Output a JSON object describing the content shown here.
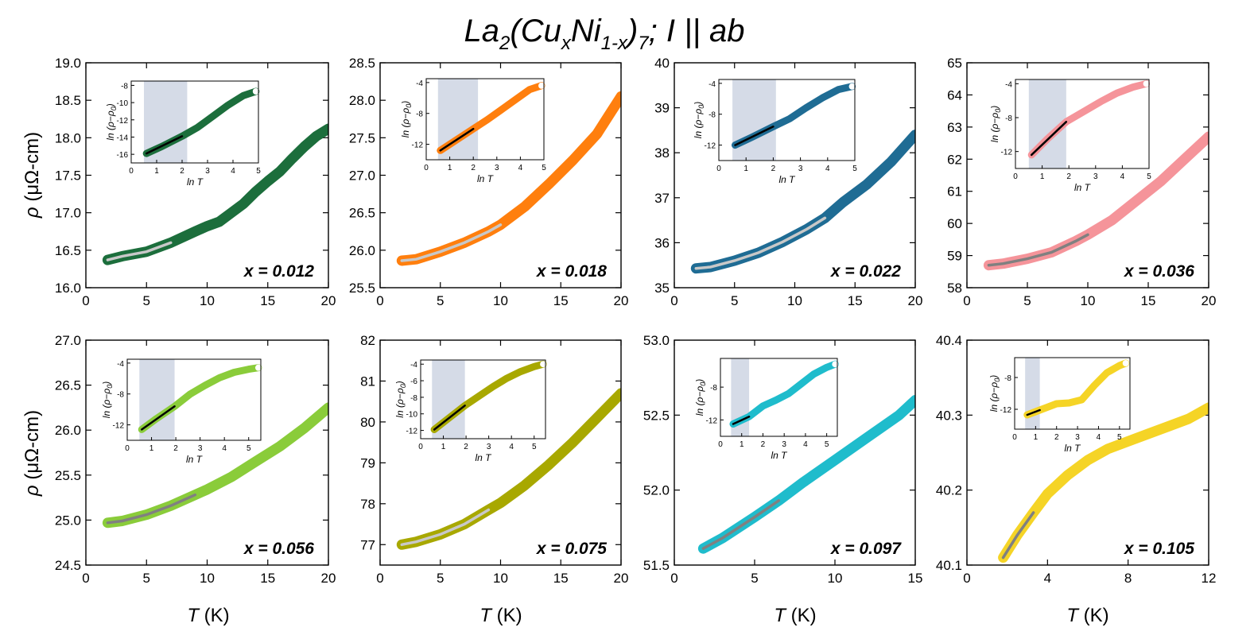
{
  "chart_data": {
    "title": {
      "main": "La",
      "sub1": "2",
      "mid1": "(Cu",
      "sub2": "x",
      "mid2": "Ni",
      "sub3": "1-x",
      "mid3": ")",
      "sub4": "7",
      "end": "; I || ab"
    },
    "ylabel": {
      "symbol": "ρ",
      "unit": " (μΩ-cm)"
    },
    "xlabel": {
      "symbol": "T",
      "unit": " (K)"
    },
    "inset_xlabel": "ln T",
    "inset_ylabel": "ln (ρ−ρ",
    "inset_ylabel_sub": "0",
    "inset_ylabel_end": ")",
    "panels": [
      {
        "label": "x = 0.012",
        "color": "#1c6e3c",
        "fit_color": "#c8c8c8",
        "xlim": [
          0,
          20
        ],
        "xticks": [
          0,
          5,
          10,
          15,
          20
        ],
        "ylim": [
          16.0,
          19.0
        ],
        "yticks": [
          "16.0",
          "16.5",
          "17.0",
          "17.5",
          "18.0",
          "18.5",
          "19.0"
        ],
        "fit_end": 8.2,
        "curve": [
          [
            1.8,
            16.37
          ],
          [
            3,
            16.42
          ],
          [
            5,
            16.48
          ],
          [
            7,
            16.6
          ],
          [
            9,
            16.75
          ],
          [
            10,
            16.82
          ],
          [
            11,
            16.88
          ],
          [
            12,
            17.0
          ],
          [
            13,
            17.12
          ],
          [
            14,
            17.28
          ],
          [
            15,
            17.42
          ],
          [
            16,
            17.55
          ],
          [
            17,
            17.72
          ],
          [
            18,
            17.88
          ],
          [
            19,
            18.02
          ],
          [
            20,
            18.12
          ]
        ],
        "inset": {
          "xlim": [
            0,
            5
          ],
          "xticks": [
            "0",
            "1",
            "2",
            "3",
            "4",
            "5"
          ],
          "ylim": [
            -17,
            -7.5
          ],
          "yticks": [
            "-8",
            "-10",
            "-12",
            "-14",
            "-16"
          ],
          "shade": [
            0.5,
            2.2
          ],
          "fit_end": 2.2,
          "curve": [
            [
              0.6,
              -15.9
            ],
            [
              1.2,
              -15.1
            ],
            [
              2.0,
              -13.9
            ],
            [
              2.6,
              -12.9
            ],
            [
              3.2,
              -11.6
            ],
            [
              3.8,
              -10.3
            ],
            [
              4.4,
              -9.2
            ],
            [
              4.9,
              -8.7
            ]
          ]
        }
      },
      {
        "label": "x = 0.018",
        "color": "#ff7f0e",
        "fit_color": "#c8c8c8",
        "xlim": [
          0,
          20
        ],
        "xticks": [
          0,
          5,
          10,
          15,
          20
        ],
        "ylim": [
          25.5,
          28.5
        ],
        "yticks": [
          "25.5",
          "26.0",
          "26.5",
          "27.0",
          "27.5",
          "28.0",
          "28.5"
        ],
        "fit_end": 10,
        "curve": [
          [
            1.8,
            25.86
          ],
          [
            3,
            25.88
          ],
          [
            5,
            25.98
          ],
          [
            7,
            26.1
          ],
          [
            9,
            26.25
          ],
          [
            10,
            26.34
          ],
          [
            12,
            26.58
          ],
          [
            14,
            26.88
          ],
          [
            16,
            27.2
          ],
          [
            18,
            27.55
          ],
          [
            19,
            27.8
          ],
          [
            20,
            28.05
          ]
        ],
        "inset": {
          "xlim": [
            0,
            5
          ],
          "xticks": [
            "0",
            "1",
            "2",
            "3",
            "4",
            "5"
          ],
          "ylim": [
            -14,
            -3.5
          ],
          "yticks": [
            "-4",
            "-8",
            "-12"
          ],
          "shade": [
            0.5,
            2.2
          ],
          "fit_end": 2.2,
          "curve": [
            [
              0.6,
              -12.8
            ],
            [
              1.2,
              -11.6
            ],
            [
              2.0,
              -10.0
            ],
            [
              2.6,
              -8.8
            ],
            [
              3.2,
              -7.5
            ],
            [
              3.8,
              -6.2
            ],
            [
              4.4,
              -4.9
            ],
            [
              4.9,
              -4.4
            ]
          ]
        }
      },
      {
        "label": "x = 0.022",
        "color": "#1f6c94",
        "fit_color": "#c8c8c8",
        "xlim": [
          0,
          20
        ],
        "xticks": [
          0,
          5,
          10,
          15,
          20
        ],
        "ylim": [
          35,
          40
        ],
        "yticks": [
          "35",
          "36",
          "37",
          "38",
          "39",
          "40"
        ],
        "fit_end": 12.5,
        "curve": [
          [
            1.8,
            35.43
          ],
          [
            3,
            35.46
          ],
          [
            5,
            35.6
          ],
          [
            7,
            35.78
          ],
          [
            9,
            36.02
          ],
          [
            11,
            36.3
          ],
          [
            12.5,
            36.55
          ],
          [
            14,
            36.9
          ],
          [
            16,
            37.3
          ],
          [
            18,
            37.8
          ],
          [
            20,
            38.4
          ]
        ],
        "inset": {
          "xlim": [
            0,
            5
          ],
          "xticks": [
            "0",
            "1",
            "2",
            "3",
            "4",
            "5"
          ],
          "ylim": [
            -14,
            -3.5
          ],
          "yticks": [
            "-4",
            "-8",
            "-12"
          ],
          "shade": [
            0.5,
            2.1
          ],
          "fit_end": 2.1,
          "curve": [
            [
              0.6,
              -12.0
            ],
            [
              1.2,
              -11.0
            ],
            [
              2.0,
              -9.6
            ],
            [
              2.6,
              -8.6
            ],
            [
              3.2,
              -7.2
            ],
            [
              3.8,
              -5.9
            ],
            [
              4.4,
              -4.8
            ],
            [
              4.9,
              -4.4
            ]
          ]
        }
      },
      {
        "label": "x = 0.036",
        "color": "#f5949a",
        "fit_color": "#808080",
        "xlim": [
          0,
          20
        ],
        "xticks": [
          0,
          5,
          10,
          15,
          20
        ],
        "ylim": [
          58,
          65
        ],
        "yticks": [
          "58",
          "59",
          "60",
          "61",
          "62",
          "63",
          "64",
          "65"
        ],
        "fit_end": 10,
        "curve": [
          [
            1.8,
            58.7
          ],
          [
            3,
            58.75
          ],
          [
            5,
            58.9
          ],
          [
            7,
            59.1
          ],
          [
            9,
            59.45
          ],
          [
            10,
            59.65
          ],
          [
            12,
            60.1
          ],
          [
            14,
            60.7
          ],
          [
            16,
            61.3
          ],
          [
            18,
            62.0
          ],
          [
            20,
            62.7
          ]
        ],
        "inset": {
          "xlim": [
            0,
            5
          ],
          "xticks": [
            "0",
            "1",
            "2",
            "3",
            "4",
            "5"
          ],
          "ylim": [
            -14,
            -3.5
          ],
          "yticks": [
            "-4",
            "-8",
            "-12"
          ],
          "shade": [
            0.5,
            1.9
          ],
          "fit_end": 1.9,
          "curve": [
            [
              0.6,
              -12.4
            ],
            [
              1.2,
              -10.5
            ],
            [
              1.9,
              -8.5
            ],
            [
              2.6,
              -7.2
            ],
            [
              3.2,
              -6.1
            ],
            [
              3.8,
              -5.1
            ],
            [
              4.4,
              -4.4
            ],
            [
              4.9,
              -4.0
            ]
          ]
        }
      },
      {
        "label": "x = 0.056",
        "color": "#8acc3a",
        "fit_color": "#808080",
        "xlim": [
          0,
          20
        ],
        "xticks": [
          0,
          5,
          10,
          15,
          20
        ],
        "ylim": [
          24.5,
          27.0
        ],
        "yticks": [
          "24.5",
          "25.0",
          "25.5",
          "26.0",
          "26.5",
          "27.0"
        ],
        "fit_end": 9.8,
        "curve": [
          [
            1.8,
            24.97
          ],
          [
            3,
            24.99
          ],
          [
            5,
            25.06
          ],
          [
            7,
            25.16
          ],
          [
            9,
            25.28
          ],
          [
            10,
            25.34
          ],
          [
            12,
            25.48
          ],
          [
            14,
            25.65
          ],
          [
            16,
            25.82
          ],
          [
            18,
            26.02
          ],
          [
            20,
            26.25
          ]
        ],
        "inset": {
          "xlim": [
            0,
            5.5
          ],
          "xticks": [
            "0",
            "1",
            "2",
            "3",
            "4",
            "5"
          ],
          "ylim": [
            -14,
            -3.5
          ],
          "yticks": [
            "-4",
            "-8",
            "-12"
          ],
          "shade": [
            0.5,
            1.95
          ],
          "fit_end": 1.95,
          "curve": [
            [
              0.6,
              -12.6
            ],
            [
              1.2,
              -11.2
            ],
            [
              1.95,
              -9.6
            ],
            [
              2.6,
              -8.0
            ],
            [
              3.2,
              -6.9
            ],
            [
              3.8,
              -5.9
            ],
            [
              4.4,
              -5.2
            ],
            [
              5.0,
              -4.8
            ],
            [
              5.4,
              -4.6
            ]
          ]
        }
      },
      {
        "label": "x = 0.075",
        "color": "#a8a800",
        "fit_color": "#c8c8c8",
        "xlim": [
          0,
          20
        ],
        "xticks": [
          0,
          5,
          10,
          15,
          20
        ],
        "ylim": [
          76.5,
          82
        ],
        "yticks": [
          "77",
          "78",
          "79",
          "80",
          "81",
          "82"
        ],
        "fit_end": 9.5,
        "curve": [
          [
            1.8,
            77.0
          ],
          [
            3,
            77.07
          ],
          [
            5,
            77.25
          ],
          [
            7,
            77.5
          ],
          [
            9,
            77.85
          ],
          [
            10,
            78.02
          ],
          [
            12,
            78.45
          ],
          [
            14,
            78.95
          ],
          [
            16,
            79.5
          ],
          [
            18,
            80.1
          ],
          [
            20,
            80.7
          ]
        ],
        "inset": {
          "xlim": [
            0,
            5.5
          ],
          "xticks": [
            "0",
            "1",
            "2",
            "3",
            "4",
            "5"
          ],
          "ylim": [
            -13,
            -3.5
          ],
          "yticks": [
            "-4",
            "-6",
            "-8",
            "-10",
            "-12"
          ],
          "shade": [
            0.5,
            1.95
          ],
          "fit_end": 1.95,
          "curve": [
            [
              0.6,
              -11.9
            ],
            [
              1.2,
              -10.6
            ],
            [
              1.95,
              -9.0
            ],
            [
              2.6,
              -7.8
            ],
            [
              3.2,
              -6.7
            ],
            [
              3.8,
              -5.7
            ],
            [
              4.4,
              -4.9
            ],
            [
              5.0,
              -4.3
            ],
            [
              5.4,
              -4.0
            ]
          ]
        }
      },
      {
        "label": "x = 0.097",
        "color": "#1fbccc",
        "fit_color": "#808080",
        "xlim": [
          0,
          15
        ],
        "xticks": [
          0,
          5,
          10,
          15
        ],
        "ylim": [
          51.5,
          53.0
        ],
        "yticks": [
          "51.5",
          "52.0",
          "52.5",
          "53.0"
        ],
        "fit_end": 6.5,
        "curve": [
          [
            1.8,
            51.61
          ],
          [
            3,
            51.68
          ],
          [
            5,
            51.82
          ],
          [
            6.5,
            51.93
          ],
          [
            8,
            52.05
          ],
          [
            10,
            52.2
          ],
          [
            12,
            52.35
          ],
          [
            14,
            52.5
          ],
          [
            15,
            52.6
          ]
        ],
        "inset": {
          "xlim": [
            0,
            5.5
          ],
          "xticks": [
            "0",
            "1",
            "2",
            "3",
            "4",
            "5"
          ],
          "ylim": [
            -14,
            -4.5
          ],
          "yticks": [
            "-8",
            "-12"
          ],
          "shade": [
            0.5,
            1.35
          ],
          "fit_end": 1.35,
          "curve": [
            [
              0.6,
              -12.5
            ],
            [
              1.35,
              -11.6
            ],
            [
              2.0,
              -10.3
            ],
            [
              2.6,
              -9.6
            ],
            [
              3.2,
              -8.8
            ],
            [
              3.8,
              -7.6
            ],
            [
              4.4,
              -6.4
            ],
            [
              5.0,
              -5.6
            ],
            [
              5.4,
              -5.2
            ]
          ]
        }
      },
      {
        "label": "x = 0.105",
        "color": "#f5d426",
        "fit_color": "#808080",
        "xlim": [
          0,
          12
        ],
        "xticks": [
          "0",
          "4",
          "8",
          "12"
        ],
        "xtick_vals": [
          0,
          4,
          8,
          12
        ],
        "ylim": [
          40.1,
          40.4
        ],
        "yticks": [
          "40.1",
          "40.2",
          "40.3",
          "40.4"
        ],
        "fit_end": 3.3,
        "curve": [
          [
            1.8,
            40.11
          ],
          [
            2.5,
            40.14
          ],
          [
            3.3,
            40.17
          ],
          [
            4,
            40.195
          ],
          [
            5,
            40.22
          ],
          [
            6,
            40.24
          ],
          [
            7,
            40.255
          ],
          [
            8,
            40.265
          ],
          [
            9,
            40.275
          ],
          [
            10,
            40.285
          ],
          [
            11,
            40.295
          ],
          [
            12,
            40.31
          ]
        ],
        "inset": {
          "xlim": [
            0,
            5.5
          ],
          "xticks": [
            "0",
            "1",
            "2",
            "3",
            "4",
            "5"
          ],
          "ylim": [
            -14.5,
            -5.5
          ],
          "yticks": [
            "-8",
            "-12"
          ],
          "shade": [
            0.5,
            1.2
          ],
          "fit_end": 1.2,
          "curve": [
            [
              0.6,
              -12.7
            ],
            [
              1.2,
              -12.1
            ],
            [
              2.0,
              -11.3
            ],
            [
              2.6,
              -11.2
            ],
            [
              3.2,
              -10.8
            ],
            [
              3.8,
              -9.0
            ],
            [
              4.4,
              -7.4
            ],
            [
              5.0,
              -6.5
            ],
            [
              5.3,
              -6.2
            ]
          ]
        }
      }
    ]
  }
}
